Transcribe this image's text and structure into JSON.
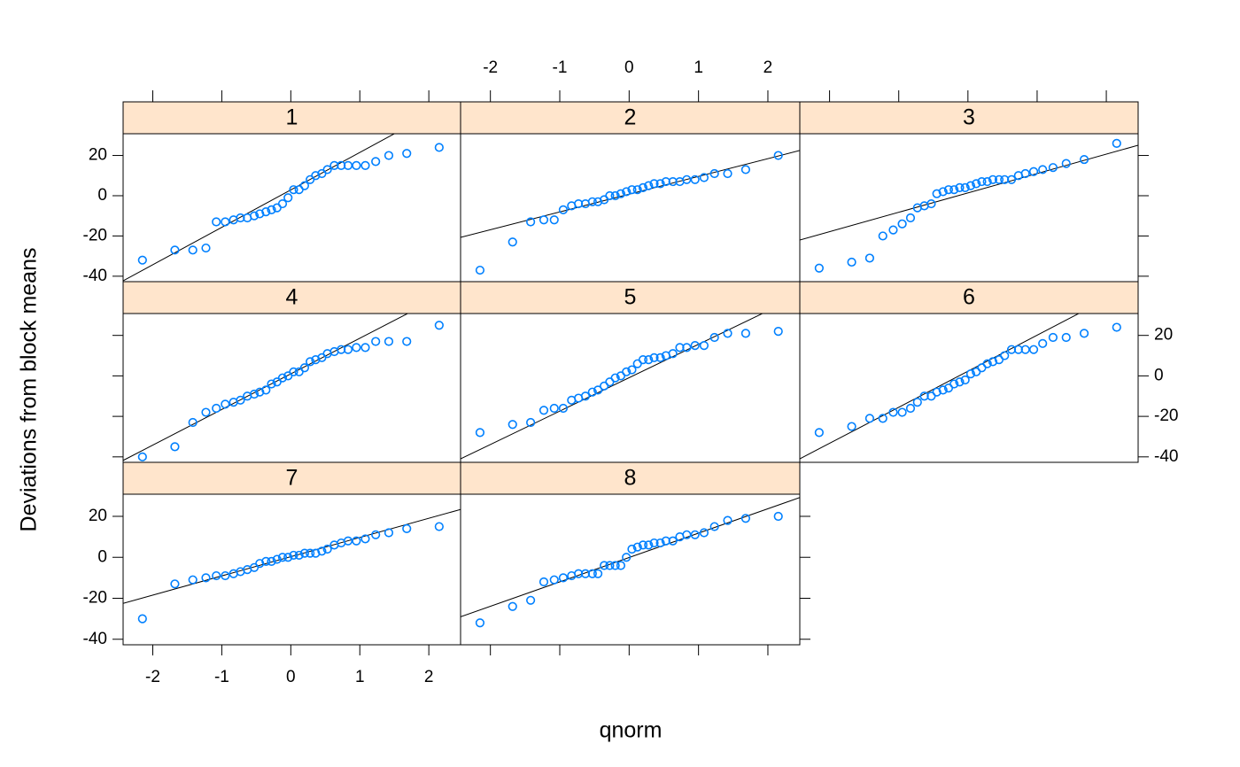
{
  "chart_data": {
    "type": "scatter",
    "xlabel": "qnorm",
    "ylabel": "Deviations from block means",
    "color": "#0080ff",
    "line_color": "#000000",
    "strip_color": "#ffe5cc",
    "xlim": [
      -2.43,
      2.46
    ],
    "ylim": [
      -42.7,
      30.8
    ],
    "xticks": [
      -2,
      -1,
      0,
      1,
      2
    ],
    "yticks": [
      -40,
      -20,
      0,
      20
    ],
    "x": [
      -2.15,
      -1.68,
      -1.42,
      -1.23,
      -1.08,
      -0.95,
      -0.83,
      -0.73,
      -0.63,
      -0.53,
      -0.45,
      -0.36,
      -0.28,
      -0.2,
      -0.12,
      -0.04,
      0.04,
      0.12,
      0.2,
      0.28,
      0.36,
      0.45,
      0.53,
      0.63,
      0.73,
      0.83,
      0.95,
      1.08,
      1.23,
      1.42,
      1.68,
      2.15
    ],
    "panels": [
      {
        "title": "1",
        "slope": 18.6,
        "intercept": 2.9,
        "y": [
          -32,
          -27,
          -27,
          -26,
          -13,
          -13,
          -12,
          -11,
          -11,
          -10,
          -9,
          -8,
          -7,
          -6,
          -4,
          -1,
          3,
          3,
          5,
          8,
          10,
          11,
          13,
          15,
          15,
          15,
          15,
          15,
          17,
          20,
          21,
          24
        ]
      },
      {
        "title": "2",
        "slope": 8.83,
        "intercept": 0.76,
        "y": [
          -37,
          -23,
          -13,
          -12,
          -12,
          -7,
          -5,
          -4,
          -4,
          -3,
          -3,
          -2,
          0,
          0,
          1,
          2,
          3,
          3,
          4,
          5,
          6,
          6,
          7,
          7,
          7,
          8,
          8,
          9,
          11,
          11,
          13,
          20
        ]
      },
      {
        "title": "3",
        "slope": 9.63,
        "intercept": 1.4,
        "y": [
          -36,
          -33,
          -31,
          -20,
          -17,
          -14,
          -11,
          -6,
          -5,
          -4,
          1,
          2,
          3,
          3,
          4,
          4,
          5,
          6,
          7,
          7,
          8,
          8,
          8,
          8,
          10,
          11,
          12,
          13,
          14,
          16,
          18,
          26
        ]
      },
      {
        "title": "4",
        "slope": 17.6,
        "intercept": 1.0,
        "y": [
          -40,
          -35,
          -23,
          -18,
          -16,
          -14,
          -13,
          -12,
          -10,
          -9,
          -8,
          -7,
          -4,
          -3,
          -1,
          0,
          2,
          2,
          4,
          7,
          8,
          9,
          11,
          12,
          13,
          13,
          14,
          14,
          17,
          17,
          17,
          25
        ]
      },
      {
        "title": "5",
        "slope": 16.5,
        "intercept": -0.9,
        "y": [
          -28,
          -24,
          -23,
          -17,
          -16,
          -16,
          -12,
          -11,
          -10,
          -8,
          -7,
          -5,
          -3,
          -1,
          0,
          2,
          3,
          6,
          8,
          8,
          9,
          9,
          10,
          11,
          14,
          14,
          15,
          15,
          19,
          21,
          21,
          22
        ]
      },
      {
        "title": "6",
        "slope": 17.8,
        "intercept": 2.3,
        "y": [
          -28,
          -25,
          -21,
          -21,
          -18,
          -18,
          -16,
          -13,
          -10,
          -10,
          -8,
          -7,
          -6,
          -4,
          -3,
          -2,
          1,
          2,
          4,
          6,
          7,
          8,
          10,
          13,
          13,
          13,
          13,
          16,
          19,
          19,
          21,
          24
        ]
      },
      {
        "title": "7",
        "slope": 9.37,
        "intercept": 0.3,
        "y": [
          -30,
          -13,
          -11,
          -10,
          -9,
          -9,
          -8,
          -7,
          -6,
          -5,
          -3,
          -2,
          -2,
          -1,
          0,
          0,
          1,
          1,
          2,
          2,
          2,
          3,
          4,
          6,
          7,
          8,
          8,
          9,
          11,
          12,
          14,
          15
        ]
      },
      {
        "title": "8",
        "slope": 11.9,
        "intercept": -0.1,
        "y": [
          -32,
          -24,
          -21,
          -12,
          -11,
          -10,
          -9,
          -8,
          -8,
          -8,
          -8,
          -4,
          -4,
          -4,
          -4,
          0,
          4,
          5,
          6,
          6,
          7,
          7,
          8,
          8,
          10,
          11,
          11,
          12,
          15,
          18,
          19,
          20
        ]
      }
    ]
  }
}
